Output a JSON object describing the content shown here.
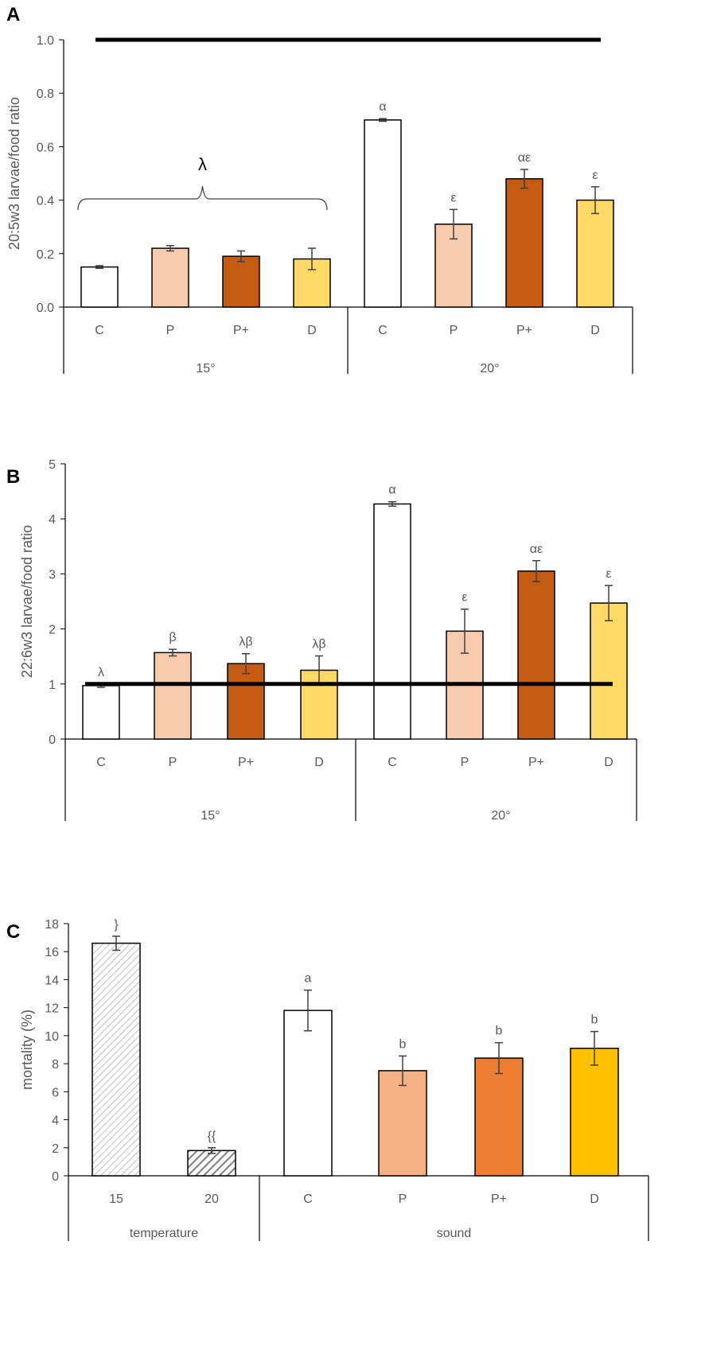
{
  "colors": {
    "white": "#ffffff",
    "peach": "#f8cbad",
    "rust": "#c55a11",
    "yellow": "#ffd966",
    "light_orange": "#f4b183",
    "orange": "#ed7d31",
    "gold": "#ffc000",
    "hatch_light": "#bfbfbf",
    "hatch_dark": "#7f7f7f",
    "axis": "#000000",
    "text": "#595959",
    "errorbar": "#404040"
  },
  "chart_data": [
    {
      "panel": "A",
      "type": "bar",
      "ylabel": "20:5w3 larvae/food ratio",
      "ylim": [
        0,
        1.0
      ],
      "yticks": [
        "0.0",
        "0.2",
        "0.4",
        "0.6",
        "0.8",
        "1.0"
      ],
      "ytick_values": [
        0,
        0.2,
        0.4,
        0.6,
        0.8,
        1.0
      ],
      "reference_line": 1.0,
      "groups": [
        {
          "label": "15°",
          "categories": [
            "C",
            "P",
            "P+",
            "D"
          ]
        },
        {
          "label": "20°",
          "categories": [
            "C",
            "P",
            "P+",
            "D"
          ]
        }
      ],
      "values": [
        0.15,
        0.22,
        0.19,
        0.18,
        0.7,
        0.31,
        0.48,
        0.4
      ],
      "errors": [
        0.005,
        0.01,
        0.02,
        0.04,
        0.005,
        0.055,
        0.035,
        0.05
      ],
      "fills": [
        "white",
        "peach",
        "rust",
        "yellow",
        "white",
        "peach",
        "rust",
        "yellow"
      ],
      "labels": [
        "",
        "",
        "",
        "",
        "α",
        "ε",
        "αε",
        "ε"
      ],
      "group_bracket": {
        "label": "λ",
        "over_group": "15°"
      }
    },
    {
      "panel": "B",
      "type": "bar",
      "ylabel": "22:6w3 larvae/food ratio",
      "ylim": [
        0,
        5
      ],
      "yticks": [
        "0",
        "1",
        "2",
        "3",
        "4",
        "5"
      ],
      "ytick_values": [
        0,
        1,
        2,
        3,
        4,
        5
      ],
      "reference_line": 1.0,
      "groups": [
        {
          "label": "15°",
          "categories": [
            "C",
            "P",
            "P+",
            "D"
          ]
        },
        {
          "label": "20°",
          "categories": [
            "C",
            "P",
            "P+",
            "D"
          ]
        }
      ],
      "values": [
        0.97,
        1.57,
        1.37,
        1.25,
        4.27,
        1.96,
        3.05,
        2.47
      ],
      "errors": [
        0.03,
        0.06,
        0.18,
        0.26,
        0.04,
        0.4,
        0.19,
        0.32
      ],
      "fills": [
        "white",
        "peach",
        "rust",
        "yellow",
        "white",
        "peach",
        "rust",
        "yellow"
      ],
      "labels": [
        "λ",
        "β",
        "λβ",
        "λβ",
        "α",
        "ε",
        "αε",
        "ε"
      ]
    },
    {
      "panel": "C",
      "type": "bar",
      "ylabel": "mortality (%)",
      "ylim": [
        0,
        18
      ],
      "yticks": [
        "0",
        "2",
        "4",
        "6",
        "8",
        "10",
        "12",
        "14",
        "16",
        "18"
      ],
      "ytick_values": [
        0,
        2,
        4,
        6,
        8,
        10,
        12,
        14,
        16,
        18
      ],
      "groups": [
        {
          "label": "temperature",
          "categories": [
            "15",
            "20"
          ]
        },
        {
          "label": "sound",
          "categories": [
            "C",
            "P",
            "P+",
            "D"
          ]
        }
      ],
      "values": [
        16.6,
        1.8,
        11.8,
        7.5,
        8.4,
        9.1
      ],
      "errors": [
        0.5,
        0.2,
        1.45,
        1.05,
        1.1,
        1.2
      ],
      "fills": [
        "hatch-light",
        "hatch-dark",
        "white",
        "light_orange",
        "orange",
        "gold"
      ],
      "labels": [
        "}",
        "{{",
        "a",
        "b",
        "b",
        "b"
      ]
    }
  ]
}
